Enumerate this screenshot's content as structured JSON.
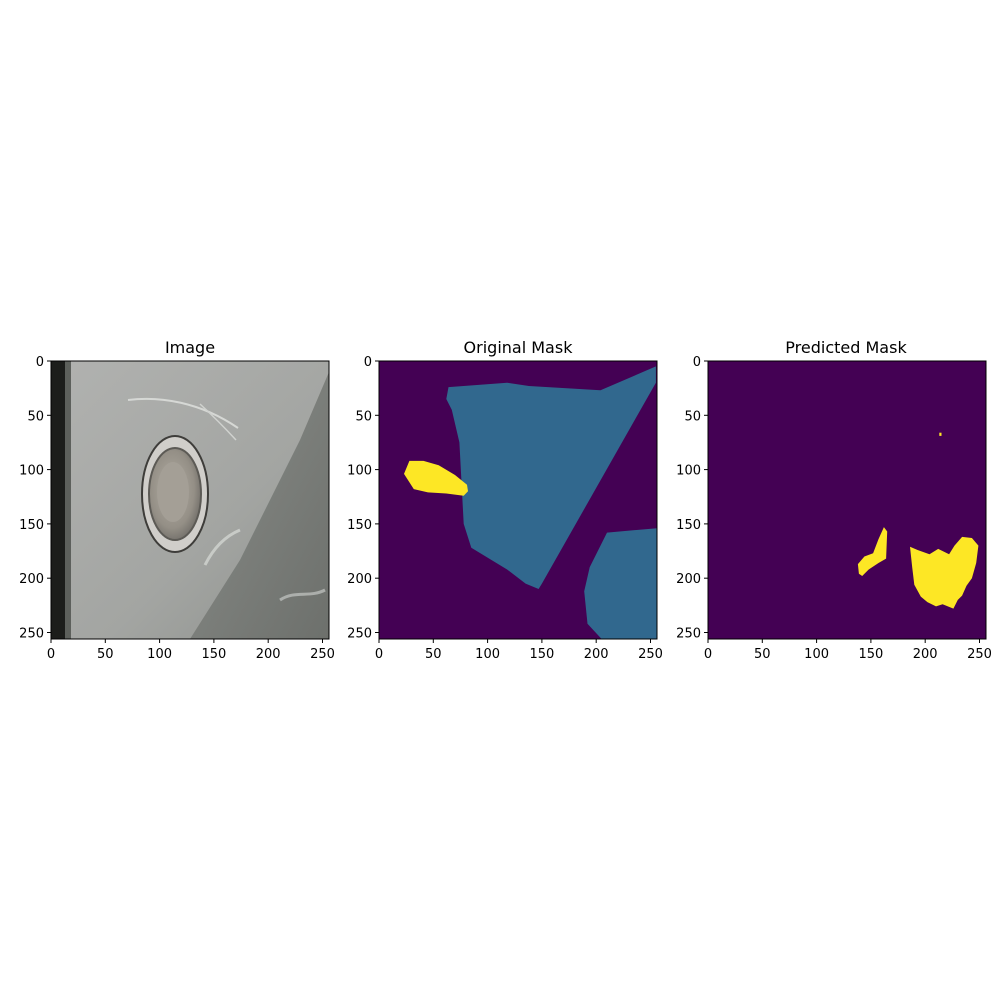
{
  "figure": {
    "panels": [
      {
        "title": "Image"
      },
      {
        "title": "Original Mask"
      },
      {
        "title": "Predicted Mask"
      }
    ]
  },
  "colors": {
    "background": "#440154",
    "class_1": "#31688e",
    "class_2": "#fde725",
    "green_fringe": "#7ad151",
    "photo_base": "#a7a8a6",
    "photo_dark_edge": "#1c1d1b",
    "photo_shadow": "#7d807c",
    "sensor_ring": "#8d8b86",
    "sensor_center": "#9f9a90"
  },
  "chart_data": [
    {
      "type": "image",
      "title": "Image",
      "content": "car bumper photo with parking sensor",
      "xlim": [
        0,
        256
      ],
      "ylim": [
        256,
        0
      ],
      "xticks": [
        0,
        50,
        100,
        150,
        200,
        250
      ],
      "yticks": [
        0,
        50,
        100,
        150,
        200,
        250
      ]
    },
    {
      "type": "heatmap",
      "title": "Original Mask",
      "colormap": "viridis",
      "xlim": [
        0,
        256
      ],
      "ylim": [
        256,
        0
      ],
      "xticks": [
        0,
        50,
        100,
        150,
        200,
        250
      ],
      "yticks": [
        0,
        50,
        100,
        150,
        200,
        250
      ],
      "regions": [
        {
          "class": 1,
          "polygon": [
            [
              64,
              24
            ],
            [
              118,
              20
            ],
            [
              138,
              23
            ],
            [
              204,
              27
            ],
            [
              255,
              5
            ],
            [
              255,
              20
            ],
            [
              150,
              205
            ],
            [
              147,
              210
            ],
            [
              135,
              205
            ],
            [
              118,
              192
            ],
            [
              85,
              172
            ],
            [
              78,
              150
            ],
            [
              74,
              75
            ],
            [
              67,
              45
            ],
            [
              62,
              35
            ]
          ]
        },
        {
          "class": 1,
          "polygon": [
            [
              210,
              158
            ],
            [
              256,
              154
            ],
            [
              256,
              256
            ],
            [
              205,
              256
            ],
            [
              192,
              242
            ],
            [
              189,
              212
            ],
            [
              194,
              190
            ]
          ]
        },
        {
          "class": 2,
          "polygon": [
            [
              28,
              92
            ],
            [
              41,
              92
            ],
            [
              55,
              96
            ],
            [
              70,
              105
            ],
            [
              81,
              114
            ],
            [
              82,
              120
            ],
            [
              78,
              124
            ],
            [
              62,
              122
            ],
            [
              45,
              121
            ],
            [
              32,
              118
            ],
            [
              23,
              104
            ]
          ]
        }
      ]
    },
    {
      "type": "heatmap",
      "title": "Predicted Mask",
      "colormap": "viridis",
      "xlim": [
        0,
        256
      ],
      "ylim": [
        256,
        0
      ],
      "xticks": [
        0,
        50,
        100,
        150,
        200,
        250
      ],
      "yticks": [
        0,
        50,
        100,
        150,
        200,
        250
      ],
      "regions": [
        {
          "class": 2,
          "polygon": [
            [
              162,
              153
            ],
            [
              165,
              157
            ],
            [
              164,
              182
            ],
            [
              157,
              186
            ],
            [
              148,
              192
            ],
            [
              142,
              198
            ],
            [
              139,
              196
            ],
            [
              138,
              187
            ],
            [
              144,
              180
            ],
            [
              152,
              177
            ],
            [
              157,
              164
            ]
          ]
        },
        {
          "class": 2,
          "polygon": [
            [
              186,
              171
            ],
            [
              193,
              174
            ],
            [
              204,
              178
            ],
            [
              212,
              173
            ],
            [
              222,
              178
            ],
            [
              227,
              170
            ],
            [
              234,
              162
            ],
            [
              243,
              163
            ],
            [
              249,
              170
            ],
            [
              247,
              186
            ],
            [
              243,
              200
            ],
            [
              238,
              207
            ],
            [
              234,
              216
            ],
            [
              230,
              220
            ],
            [
              226,
              228
            ],
            [
              216,
              224
            ],
            [
              210,
              226
            ],
            [
              202,
              222
            ],
            [
              196,
              217
            ],
            [
              190,
              206
            ],
            [
              188,
              190
            ]
          ]
        },
        {
          "class": 2,
          "polygon": [
            [
              213,
              66
            ],
            [
              215,
              66
            ],
            [
              215,
              69
            ],
            [
              213,
              69
            ]
          ]
        }
      ]
    }
  ]
}
